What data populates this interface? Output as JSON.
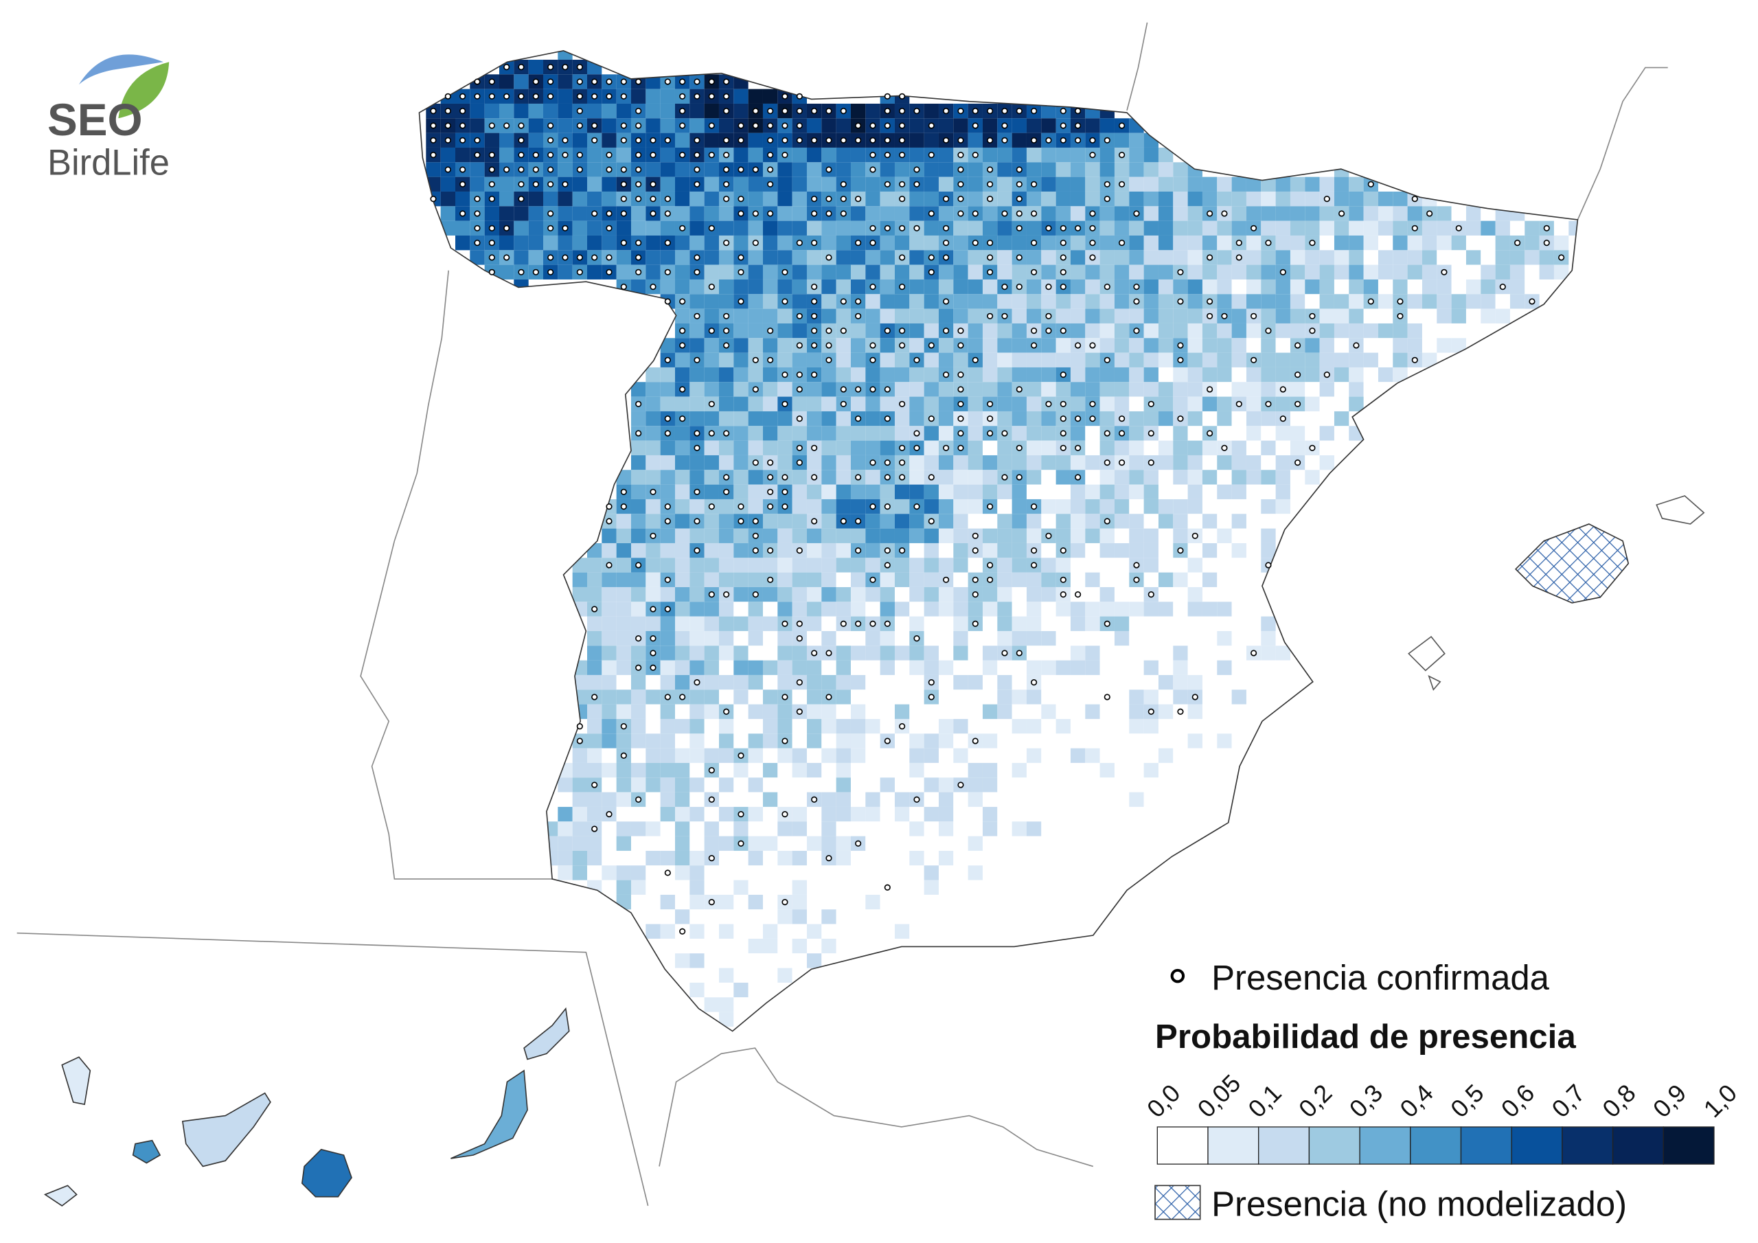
{
  "logo": {
    "line1": "SEO",
    "line2": "BirdLife"
  },
  "legend": {
    "confirmed": "Presencia confirmada",
    "title": "Probabilidad de presencia",
    "breaks": [
      {
        "value": 0,
        "label": "0,0"
      },
      {
        "value": 0.05,
        "label": "0,05"
      },
      {
        "value": 0.1,
        "label": "0,1"
      },
      {
        "value": 0.2,
        "label": "0,2"
      },
      {
        "value": 0.3,
        "label": "0,3"
      },
      {
        "value": 0.4,
        "label": "0,4"
      },
      {
        "value": 0.5,
        "label": "0,5"
      },
      {
        "value": 0.6,
        "label": "0,6"
      },
      {
        "value": 0.7,
        "label": "0,7"
      },
      {
        "value": 0.8,
        "label": "0,8"
      },
      {
        "value": 0.9,
        "label": "0,9"
      },
      {
        "value": 1,
        "label": "1,0"
      }
    ],
    "colors": [
      "#ffffff",
      "#deebf7",
      "#c6dbef",
      "#9ecae1",
      "#6baed6",
      "#4292c6",
      "#2171b5",
      "#08519c",
      "#08306b",
      "#062457",
      "#041838"
    ],
    "hatched": "Presencia (no modelizado)"
  }
}
